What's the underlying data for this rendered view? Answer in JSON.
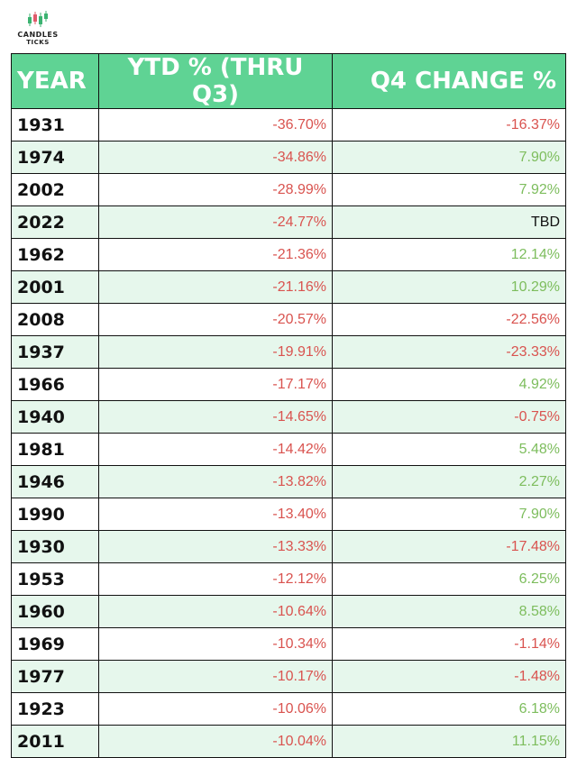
{
  "logo": {
    "line1": "CANDLES",
    "line2": "TICKS"
  },
  "colors": {
    "header_bg": "#5fd394",
    "row_alt": "#e6f7ec",
    "negative": "#d9534f",
    "positive": "#7dbd5d"
  },
  "chart_data": {
    "type": "table",
    "columns": [
      "YEAR",
      "YTD % (THRU Q3)",
      "Q4 CHANGE %"
    ],
    "rows": [
      [
        "1931",
        "-36.70%",
        "-16.37%"
      ],
      [
        "1974",
        "-34.86%",
        "7.90%"
      ],
      [
        "2002",
        "-28.99%",
        "7.92%"
      ],
      [
        "2022",
        "-24.77%",
        "TBD"
      ],
      [
        "1962",
        "-21.36%",
        "12.14%"
      ],
      [
        "2001",
        "-21.16%",
        "10.29%"
      ],
      [
        "2008",
        "-20.57%",
        "-22.56%"
      ],
      [
        "1937",
        "-19.91%",
        "-23.33%"
      ],
      [
        "1966",
        "-17.17%",
        "4.92%"
      ],
      [
        "1940",
        "-14.65%",
        "-0.75%"
      ],
      [
        "1981",
        "-14.42%",
        "5.48%"
      ],
      [
        "1946",
        "-13.82%",
        "2.27%"
      ],
      [
        "1990",
        "-13.40%",
        "7.90%"
      ],
      [
        "1930",
        "-13.33%",
        "-17.48%"
      ],
      [
        "1953",
        "-12.12%",
        "6.25%"
      ],
      [
        "1960",
        "-10.64%",
        "8.58%"
      ],
      [
        "1969",
        "-10.34%",
        "-1.14%"
      ],
      [
        "1977",
        "-10.17%",
        "-1.48%"
      ],
      [
        "1923",
        "-10.06%",
        "6.18%"
      ],
      [
        "2011",
        "-10.04%",
        "11.15%"
      ]
    ]
  }
}
